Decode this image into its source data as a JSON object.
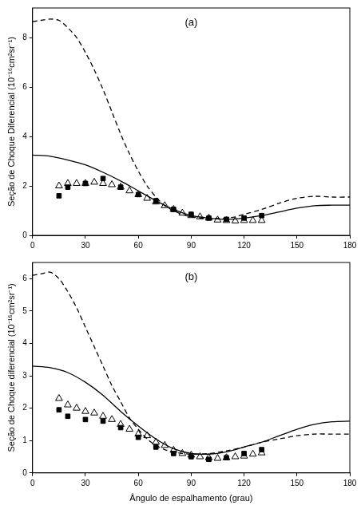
{
  "chart_data": [
    {
      "type": "line",
      "title": "(a)",
      "ylabel": "Seção de Choque Diferencial (10⁻¹⁶cm²sr⁻¹)",
      "xlim": [
        0,
        180
      ],
      "xticks": [
        0,
        30,
        60,
        90,
        120,
        150,
        180
      ],
      "ylim": [
        0,
        9.2
      ],
      "yticks": [
        0,
        2,
        4,
        6,
        8
      ],
      "grid": false,
      "series": [
        {
          "type": "line",
          "line_style": "dashed",
          "color": "#000000",
          "x": [
            0,
            5,
            10,
            15,
            20,
            25,
            30,
            35,
            40,
            45,
            50,
            55,
            60,
            65,
            70,
            75,
            80,
            85,
            90,
            95,
            100,
            105,
            110,
            115,
            120,
            130,
            140,
            150,
            160,
            170,
            180
          ],
          "values": [
            8.65,
            8.7,
            8.75,
            8.7,
            8.4,
            8.0,
            7.4,
            6.7,
            5.9,
            5.0,
            4.1,
            3.3,
            2.6,
            2.0,
            1.55,
            1.2,
            1.0,
            0.85,
            0.75,
            0.7,
            0.68,
            0.68,
            0.7,
            0.75,
            0.85,
            1.05,
            1.3,
            1.5,
            1.58,
            1.55,
            1.55
          ]
        },
        {
          "type": "line",
          "line_style": "solid",
          "color": "#000000",
          "x": [
            0,
            10,
            20,
            30,
            40,
            50,
            60,
            70,
            80,
            90,
            100,
            110,
            120,
            130,
            140,
            150,
            160,
            170,
            180
          ],
          "values": [
            3.25,
            3.2,
            3.05,
            2.85,
            2.55,
            2.2,
            1.8,
            1.4,
            1.05,
            0.8,
            0.7,
            0.65,
            0.7,
            0.8,
            0.95,
            1.1,
            1.2,
            1.22,
            1.22
          ]
        },
        {
          "type": "scatter",
          "marker": "square",
          "color": "#000000",
          "x": [
            15,
            20,
            30,
            40,
            50,
            60,
            70,
            80,
            90,
            100,
            110,
            120,
            130
          ],
          "values": [
            1.6,
            1.95,
            2.1,
            2.3,
            1.95,
            1.65,
            1.4,
            1.05,
            0.85,
            0.7,
            0.65,
            0.7,
            0.8
          ]
        },
        {
          "type": "scatter",
          "marker": "open_triangle",
          "color": "#000000",
          "x": [
            15,
            20,
            25,
            30,
            35,
            40,
            45,
            50,
            55,
            60,
            65,
            70,
            75,
            80,
            85,
            90,
            95,
            100,
            105,
            110,
            115,
            120,
            125,
            130
          ],
          "values": [
            2.0,
            2.1,
            2.1,
            2.1,
            2.15,
            2.1,
            2.05,
            1.95,
            1.8,
            1.65,
            1.5,
            1.35,
            1.2,
            1.05,
            0.9,
            0.8,
            0.75,
            0.7,
            0.62,
            0.6,
            0.58,
            0.6,
            0.6,
            0.6
          ]
        }
      ]
    },
    {
      "type": "line",
      "title": "(b)",
      "xlabel": "Ângulo de espalhamento (grau)",
      "ylabel": "Seção de Choque diferencial (10⁻¹⁶cm²sr⁻¹)",
      "xlim": [
        0,
        180
      ],
      "xticks": [
        0,
        30,
        60,
        90,
        120,
        150,
        180
      ],
      "ylim": [
        0,
        6.5
      ],
      "yticks": [
        0,
        1,
        2,
        3,
        4,
        5,
        6
      ],
      "grid": false,
      "series": [
        {
          "type": "line",
          "line_style": "dashed",
          "color": "#000000",
          "x": [
            0,
            5,
            10,
            15,
            20,
            25,
            30,
            35,
            40,
            45,
            50,
            55,
            60,
            65,
            70,
            75,
            80,
            85,
            90,
            100,
            110,
            120,
            130,
            140,
            150,
            160,
            170,
            180
          ],
          "values": [
            6.1,
            6.15,
            6.2,
            6.0,
            5.6,
            5.1,
            4.5,
            3.9,
            3.3,
            2.7,
            2.2,
            1.7,
            1.35,
            1.05,
            0.85,
            0.72,
            0.65,
            0.6,
            0.58,
            0.6,
            0.68,
            0.8,
            0.95,
            1.05,
            1.15,
            1.2,
            1.2,
            1.2
          ]
        },
        {
          "type": "line",
          "line_style": "solid",
          "color": "#000000",
          "x": [
            0,
            10,
            20,
            30,
            40,
            50,
            60,
            70,
            80,
            90,
            100,
            110,
            120,
            130,
            140,
            150,
            160,
            170,
            180
          ],
          "values": [
            3.3,
            3.25,
            3.1,
            2.8,
            2.4,
            1.9,
            1.45,
            1.05,
            0.75,
            0.6,
            0.58,
            0.65,
            0.8,
            0.95,
            1.15,
            1.35,
            1.5,
            1.58,
            1.6
          ]
        },
        {
          "type": "scatter",
          "marker": "square",
          "color": "#000000",
          "x": [
            15,
            20,
            30,
            40,
            50,
            60,
            70,
            80,
            90,
            100,
            110,
            120,
            130
          ],
          "values": [
            1.95,
            1.75,
            1.65,
            1.6,
            1.4,
            1.1,
            0.8,
            0.6,
            0.5,
            0.42,
            0.47,
            0.6,
            0.72
          ]
        },
        {
          "type": "scatter",
          "marker": "open_triangle",
          "color": "#000000",
          "x": [
            15,
            20,
            25,
            30,
            35,
            40,
            45,
            50,
            55,
            60,
            65,
            70,
            75,
            80,
            85,
            90,
            95,
            100,
            105,
            110,
            115,
            120,
            125,
            130
          ],
          "values": [
            2.3,
            2.1,
            2.0,
            1.9,
            1.85,
            1.75,
            1.65,
            1.5,
            1.35,
            1.2,
            1.15,
            0.95,
            0.85,
            0.7,
            0.6,
            0.55,
            0.5,
            0.47,
            0.45,
            0.47,
            0.5,
            0.52,
            0.58,
            0.62
          ]
        }
      ]
    }
  ]
}
